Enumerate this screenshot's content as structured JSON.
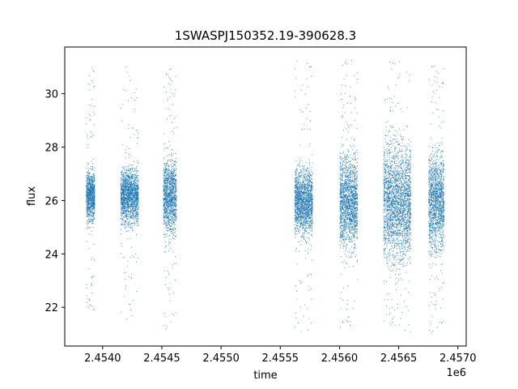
{
  "chart_data": {
    "type": "scatter",
    "title": "1SWASPJ150352.19-390628.3",
    "xlabel": "time",
    "ylabel": "flux",
    "x_offset_label": "1e6",
    "xlim": [
      2.45368,
      2.45707
    ],
    "ylim": [
      20.55,
      31.75
    ],
    "x_ticks": [
      2.454,
      2.4545,
      2.455,
      2.4555,
      2.456,
      2.4565,
      2.457
    ],
    "x_tick_labels": [
      "2.4540",
      "2.4545",
      "2.4550",
      "2.4555",
      "2.4560",
      "2.4565",
      "2.4570"
    ],
    "y_ticks": [
      22,
      24,
      26,
      28,
      30
    ],
    "y_tick_labels": [
      "22",
      "24",
      "26",
      "28",
      "30"
    ],
    "grid": false,
    "marker_color": "#1f77b4",
    "series": [
      {
        "clusters": [
          {
            "x": [
              2.45386,
              2.45393
            ],
            "median": 26.2,
            "core_low": 24.8,
            "core_high": 27.4,
            "min": 21.9,
            "max": 31.0
          },
          {
            "x": [
              2.45415,
              2.4543
            ],
            "median": 26.2,
            "core_low": 24.8,
            "core_high": 27.6,
            "min": 21.4,
            "max": 31.2
          },
          {
            "x": [
              2.45451,
              2.45462
            ],
            "median": 26.2,
            "core_low": 24.6,
            "core_high": 28.4,
            "min": 21.1,
            "max": 31.0
          },
          {
            "x": [
              2.45562,
              2.45577
            ],
            "median": 26.0,
            "core_low": 24.6,
            "core_high": 28.0,
            "min": 21.1,
            "max": 31.3
          },
          {
            "x": [
              2.456,
              2.45615
            ],
            "median": 26.0,
            "core_low": 23.8,
            "core_high": 28.6,
            "min": 21.1,
            "max": 31.3
          },
          {
            "x": [
              2.45637,
              2.4566
            ],
            "median": 26.0,
            "core_low": 23.0,
            "core_high": 29.2,
            "min": 21.0,
            "max": 31.3
          },
          {
            "x": [
              2.45675,
              2.45688
            ],
            "median": 26.0,
            "core_low": 23.4,
            "core_high": 28.6,
            "min": 21.0,
            "max": 31.3
          }
        ]
      }
    ]
  }
}
